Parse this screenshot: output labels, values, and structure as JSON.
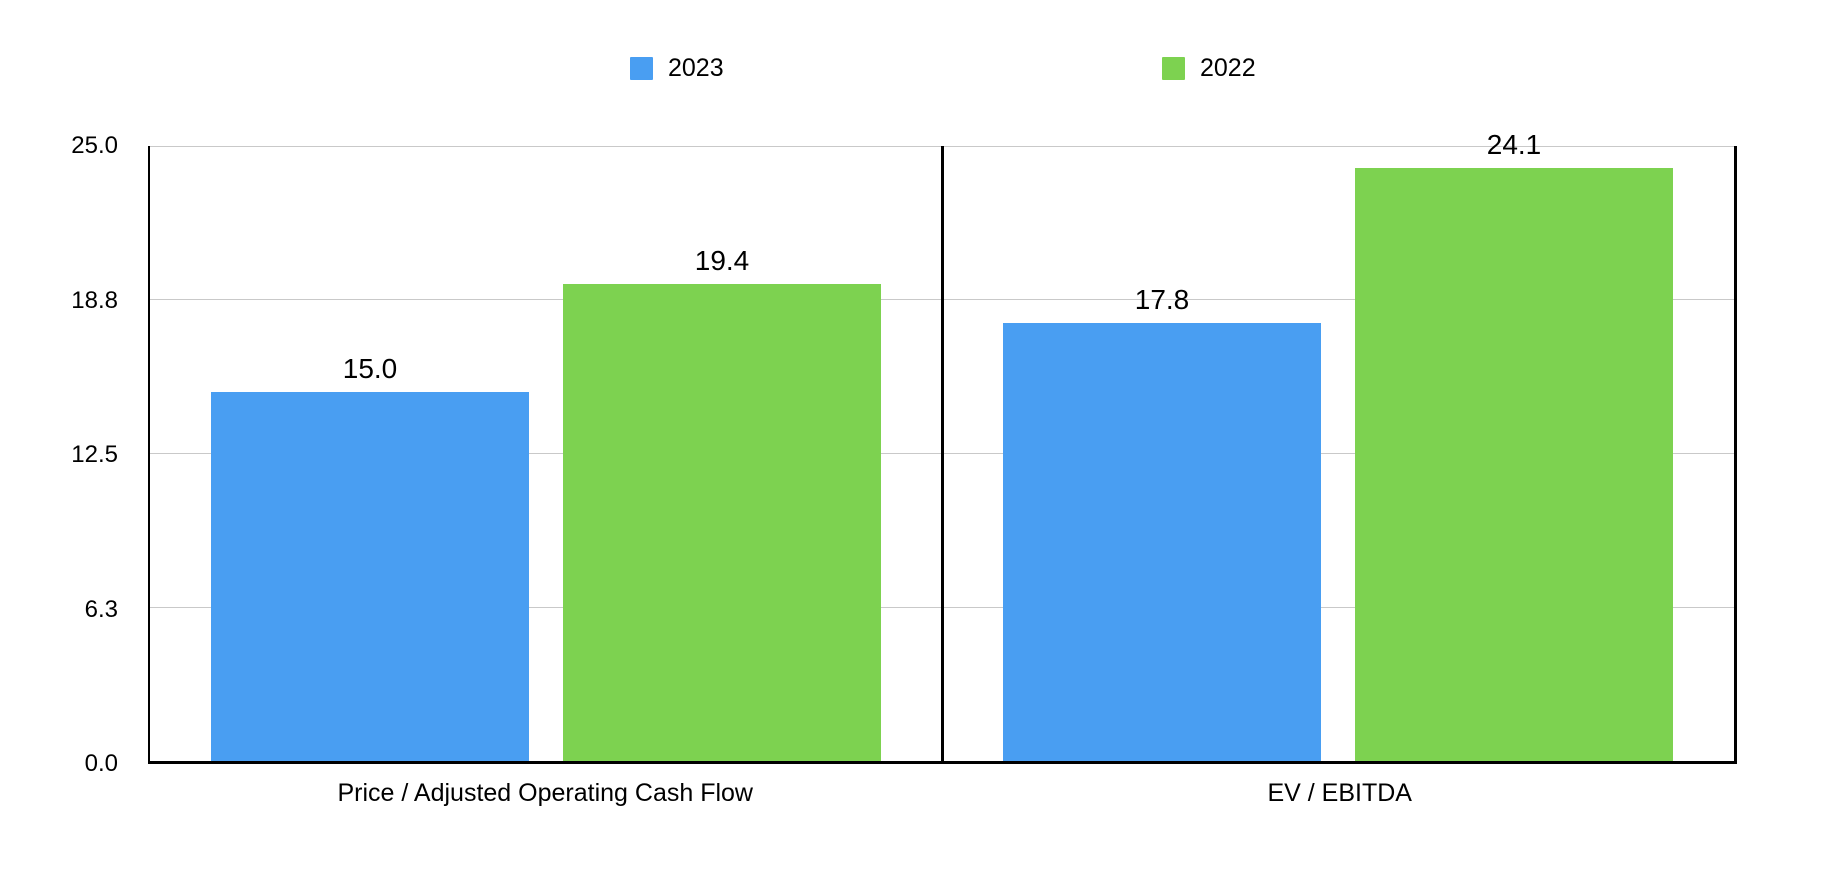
{
  "legend": {
    "items": [
      {
        "label": "2023",
        "color": "#499EF2"
      },
      {
        "label": "2022",
        "color": "#7DD250"
      }
    ]
  },
  "chart_data": {
    "type": "bar",
    "categories": [
      "Price / Adjusted Operating Cash Flow",
      "EV / EBITDA"
    ],
    "series": [
      {
        "name": "2023",
        "color": "#499EF2",
        "values": [
          15.0,
          17.8
        ],
        "labels": [
          "15.0",
          "17.8"
        ]
      },
      {
        "name": "2022",
        "color": "#7DD250",
        "values": [
          19.4,
          24.1
        ],
        "labels": [
          "19.4",
          "24.1"
        ]
      }
    ],
    "ylim": [
      0,
      25
    ],
    "yticks": {
      "values": [
        0,
        6.25,
        12.5,
        18.75,
        25
      ],
      "labels": [
        "0.0",
        "6.3",
        "12.5",
        "18.8",
        "25.0"
      ]
    },
    "grid": true,
    "legend_position": "top",
    "colors": {
      "axis": "#000000",
      "gridline": "#C9C9C9",
      "background": "#FFFFFF",
      "label_text": "#000000"
    }
  }
}
